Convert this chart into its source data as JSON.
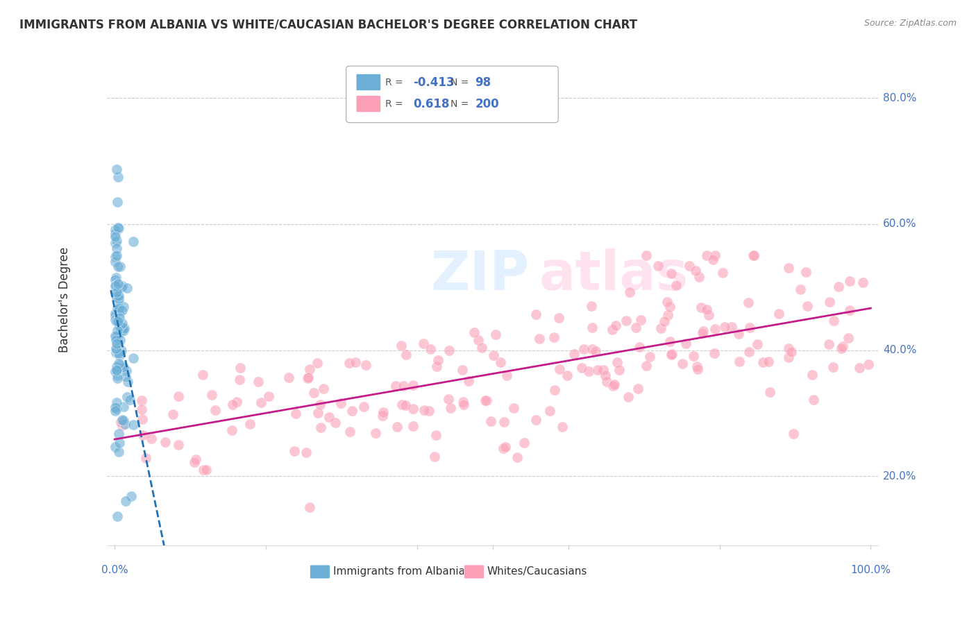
{
  "title": "IMMIGRANTS FROM ALBANIA VS WHITE/CAUCASIAN BACHELOR'S DEGREE CORRELATION CHART",
  "source": "Source: ZipAtlas.com",
  "ylabel": "Bachelor's Degree",
  "ytick_labels": [
    "20.0%",
    "40.0%",
    "60.0%",
    "80.0%"
  ],
  "ytick_values": [
    0.2,
    0.4,
    0.6,
    0.8
  ],
  "legend_blue_r": "-0.413",
  "legend_blue_n": "98",
  "legend_pink_r": "0.618",
  "legend_pink_n": "200",
  "blue_color": "#6baed6",
  "blue_line_color": "#2171b5",
  "pink_color": "#fa9fb5",
  "pink_line_color": "#c51b8a",
  "background_color": "#ffffff"
}
